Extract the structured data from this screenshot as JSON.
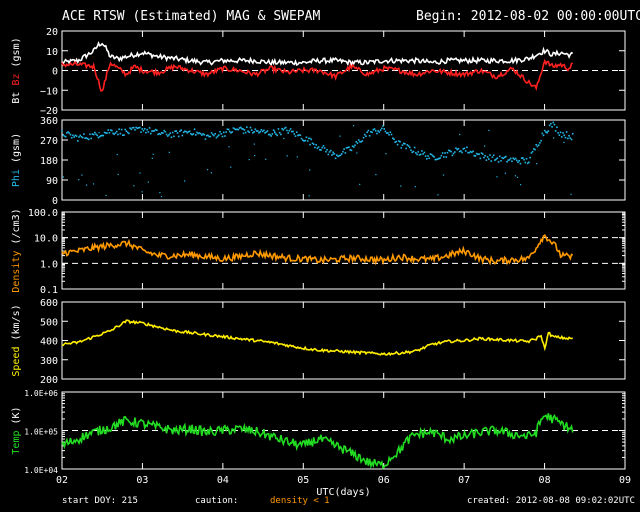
{
  "header": {
    "title": "ACE RTSW (Estimated) MAG & SWEPAM",
    "begin": "Begin: 2012-08-02 00:00:00UTC"
  },
  "footer": {
    "start_doy": "start DOY: 215",
    "caution": "caution:",
    "density_note": "density < 1",
    "created": "created: 2012-08-08 09:02:02UTC"
  },
  "colors": {
    "bt": "#ffffff",
    "bz": "#ff2020",
    "phi": "#22b8e8",
    "density": "#ff9900",
    "speed": "#ffee00",
    "temp": "#22dd22",
    "frame": "#ffffff",
    "background": "#000000"
  },
  "chart_data": [
    {
      "type": "line",
      "panel": "mag",
      "ylabel_parts": [
        {
          "text": "Bt",
          "color": "#ffffff"
        },
        {
          "text": "Bz",
          "color": "#ff2020"
        },
        {
          "text": "(gsm)",
          "color": "#ffffff"
        }
      ],
      "ylim": [
        -20,
        20
      ],
      "yticks": [
        -20,
        -10,
        0,
        10,
        20
      ],
      "ytick_labels": [
        "−20",
        "−10",
        "0",
        "10",
        "20"
      ],
      "dashed_levels": [
        0
      ],
      "x_days": [
        2.0,
        2.2,
        2.4,
        2.45,
        2.5,
        2.55,
        2.6,
        2.7,
        2.8,
        2.9,
        3.0,
        3.2,
        3.4,
        3.6,
        3.8,
        4.0,
        4.2,
        4.4,
        4.6,
        4.8,
        5.0,
        5.2,
        5.4,
        5.6,
        5.8,
        6.0,
        6.2,
        6.4,
        6.6,
        6.8,
        7.0,
        7.2,
        7.4,
        7.6,
        7.8,
        7.9,
        8.0,
        8.1,
        8.2,
        8.3,
        8.35
      ],
      "series": [
        {
          "name": "Bt",
          "color": "#ffffff",
          "values": [
            4,
            5,
            10,
            13,
            14,
            11,
            7,
            6,
            7,
            8,
            9,
            7,
            6,
            5,
            4,
            5,
            5,
            5,
            4,
            4,
            4,
            5,
            5,
            4,
            4,
            5,
            5,
            5,
            4,
            5,
            5,
            5,
            5,
            5,
            6,
            8,
            10,
            8,
            9,
            8,
            8
          ]
        },
        {
          "name": "Bz",
          "color": "#ff2020",
          "values": [
            3,
            3,
            2,
            -5,
            -11,
            -3,
            4,
            1,
            -2,
            2,
            0,
            -1,
            2,
            0,
            -2,
            1,
            0,
            -2,
            1,
            -1,
            0,
            0,
            -3,
            2,
            -2,
            1,
            0,
            -2,
            0,
            -1,
            -2,
            0,
            -3,
            1,
            -6,
            -9,
            5,
            2,
            3,
            1,
            3
          ]
        }
      ]
    },
    {
      "type": "scatter",
      "panel": "phi",
      "ylabel_parts": [
        {
          "text": "Phi",
          "color": "#22b8e8"
        },
        {
          "text": "(gsm)",
          "color": "#ffffff"
        }
      ],
      "ylim": [
        0,
        360
      ],
      "yticks": [
        0,
        90,
        180,
        270,
        360
      ],
      "ytick_labels": [
        "0",
        "90",
        "180",
        "270",
        "360"
      ],
      "x_days": [
        2.0,
        2.2,
        2.4,
        2.6,
        2.8,
        3.0,
        3.2,
        3.4,
        3.6,
        3.8,
        4.0,
        4.2,
        4.4,
        4.6,
        4.8,
        5.0,
        5.2,
        5.4,
        5.6,
        5.8,
        6.0,
        6.2,
        6.4,
        6.6,
        6.8,
        7.0,
        7.2,
        7.4,
        7.6,
        7.8,
        8.0,
        8.1,
        8.2,
        8.3,
        8.35
      ],
      "series": [
        {
          "name": "Phi",
          "color": "#22b8e8",
          "values": [
            300,
            280,
            290,
            310,
            305,
            320,
            300,
            295,
            310,
            285,
            300,
            320,
            310,
            300,
            315,
            280,
            240,
            200,
            230,
            300,
            320,
            250,
            220,
            190,
            210,
            230,
            200,
            185,
            180,
            175,
            310,
            340,
            300,
            290,
            285
          ]
        }
      ]
    },
    {
      "type": "line",
      "panel": "density",
      "log_scale": true,
      "ylabel_parts": [
        {
          "text": "Density",
          "color": "#ff9900"
        },
        {
          "text": "(/cm3)",
          "color": "#ffffff"
        }
      ],
      "ylim": [
        0.1,
        100
      ],
      "yticks": [
        0.1,
        1,
        10,
        100
      ],
      "ytick_labels": [
        "0.1",
        "1.0",
        "10.0",
        "100.0"
      ],
      "dashed_levels": [
        1,
        10
      ],
      "x_days": [
        2.0,
        2.2,
        2.4,
        2.6,
        2.8,
        3.0,
        3.2,
        3.4,
        3.6,
        3.8,
        4.0,
        4.2,
        4.4,
        4.6,
        4.8,
        5.0,
        5.2,
        5.4,
        5.6,
        5.8,
        6.0,
        6.2,
        6.4,
        6.6,
        6.8,
        7.0,
        7.2,
        7.4,
        7.6,
        7.8,
        7.9,
        8.0,
        8.1,
        8.2,
        8.3,
        8.35
      ],
      "series": [
        {
          "name": "Density",
          "color": "#ff9900",
          "values": [
            2.5,
            3,
            4,
            5,
            6,
            3,
            2,
            2,
            2.2,
            1.8,
            1.5,
            1.8,
            2.5,
            2,
            1.6,
            1.5,
            1.3,
            1.4,
            1.6,
            1.5,
            1.3,
            1.8,
            1.5,
            1.4,
            2,
            3,
            1.5,
            1.2,
            1.4,
            1.5,
            4,
            12,
            6,
            2,
            1.8,
            1.7
          ]
        }
      ]
    },
    {
      "type": "line",
      "panel": "speed",
      "ylabel_parts": [
        {
          "text": "Speed",
          "color": "#ffee00"
        },
        {
          "text": "(km/s)",
          "color": "#ffffff"
        }
      ],
      "ylim": [
        200,
        600
      ],
      "yticks": [
        200,
        300,
        400,
        500,
        600
      ],
      "ytick_labels": [
        "200",
        "300",
        "400",
        "500",
        "600"
      ],
      "x_days": [
        2.0,
        2.2,
        2.4,
        2.6,
        2.8,
        3.0,
        3.2,
        3.4,
        3.6,
        3.8,
        4.0,
        4.2,
        4.4,
        4.6,
        4.8,
        5.0,
        5.2,
        5.4,
        5.6,
        5.8,
        6.0,
        6.2,
        6.4,
        6.6,
        6.8,
        7.0,
        7.2,
        7.4,
        7.6,
        7.8,
        7.9,
        7.95,
        8.0,
        8.05,
        8.1,
        8.2,
        8.3,
        8.35
      ],
      "series": [
        {
          "name": "Speed",
          "color": "#ffee00",
          "values": [
            380,
            390,
            420,
            450,
            500,
            490,
            470,
            450,
            440,
            430,
            420,
            410,
            400,
            390,
            375,
            360,
            350,
            345,
            340,
            335,
            330,
            335,
            345,
            380,
            395,
            400,
            410,
            405,
            400,
            395,
            410,
            430,
            360,
            440,
            420,
            415,
            410,
            412
          ]
        }
      ]
    },
    {
      "type": "line",
      "panel": "temp",
      "log_scale": true,
      "ylabel_parts": [
        {
          "text": "Temp",
          "color": "#22dd22"
        },
        {
          "text": "(K)",
          "color": "#ffffff"
        }
      ],
      "ylim": [
        10000,
        1000000
      ],
      "yticks": [
        10000,
        100000,
        1000000
      ],
      "ytick_labels": [
        "1.0E+04",
        "1.0E+05",
        "1.0E+06"
      ],
      "dashed_levels": [
        100000
      ],
      "x_days": [
        2.0,
        2.2,
        2.4,
        2.6,
        2.8,
        3.0,
        3.2,
        3.4,
        3.6,
        3.8,
        4.0,
        4.2,
        4.4,
        4.6,
        4.8,
        5.0,
        5.2,
        5.4,
        5.6,
        5.8,
        6.0,
        6.2,
        6.4,
        6.6,
        6.8,
        7.0,
        7.2,
        7.4,
        7.6,
        7.8,
        7.9,
        8.0,
        8.1,
        8.2,
        8.3,
        8.35
      ],
      "series": [
        {
          "name": "Temp",
          "color": "#22dd22",
          "values": [
            40000,
            60000,
            90000,
            120000,
            180000,
            150000,
            120000,
            100000,
            110000,
            90000,
            100000,
            110000,
            95000,
            70000,
            50000,
            40000,
            60000,
            40000,
            25000,
            15000,
            12000,
            30000,
            80000,
            90000,
            60000,
            70000,
            90000,
            100000,
            80000,
            70000,
            90000,
            250000,
            200000,
            150000,
            120000,
            100000
          ]
        }
      ]
    }
  ],
  "x_axis": {
    "xlim": [
      2,
      9
    ],
    "ticks": [
      2,
      3,
      4,
      5,
      6,
      7,
      8,
      9
    ],
    "tick_labels": [
      "02",
      "03",
      "04",
      "05",
      "06",
      "07",
      "08",
      "09"
    ],
    "xlabel": "UTC(days)"
  }
}
